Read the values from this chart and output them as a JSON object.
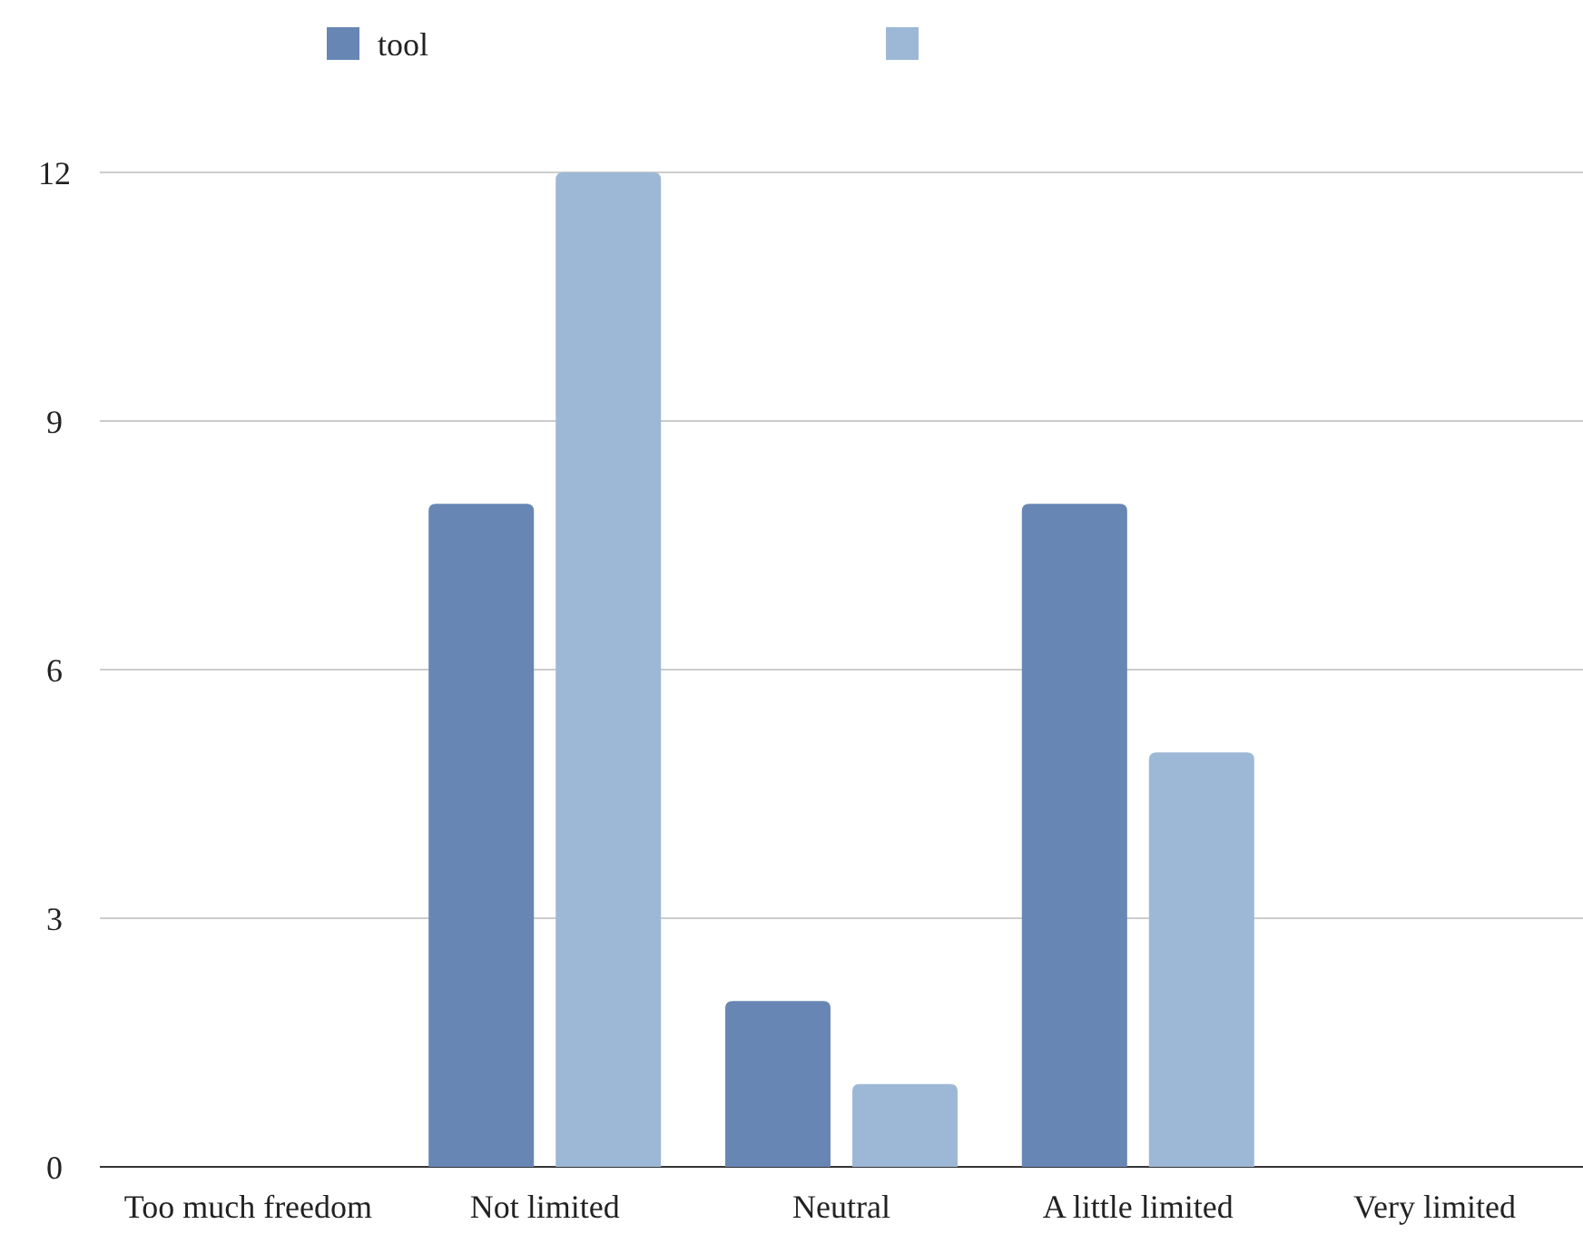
{
  "chart_data": {
    "type": "bar",
    "categories": [
      "Too much freedom",
      "Not limited",
      "Neutral",
      "A little limited",
      "Very limited"
    ],
    "series": [
      {
        "name": "tool",
        "color": "#6886b4",
        "values": [
          0,
          8,
          2,
          8,
          0
        ]
      },
      {
        "color": "#9db8d6",
        "values": [
          0,
          12,
          1,
          5,
          0
        ]
      }
    ],
    "ylim": [
      0,
      12
    ],
    "yticks": [
      0,
      3,
      6,
      9,
      12
    ],
    "grid": "y",
    "legend": "top"
  }
}
